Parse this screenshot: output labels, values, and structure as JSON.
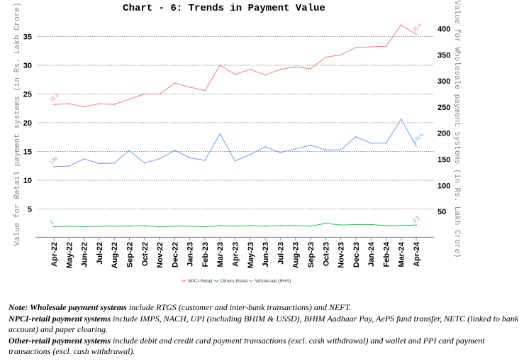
{
  "chart_data": {
    "type": "line",
    "title": "Chart - 6: Trends in Payment Value",
    "ylabel": "Value for Retail payment systems (in Rs. Lakh Crore)",
    "y2label": "Value for Wholesale payment systems (in Rs. Lakh Crore)",
    "xlabel": "",
    "categories": [
      "Apr-22",
      "May-22",
      "Jun-22",
      "Jul-22",
      "Aug-22",
      "Sep-22",
      "Oct-22",
      "Nov-22",
      "Dec-22",
      "Jan-23",
      "Feb-23",
      "Mar-23",
      "Apr-23",
      "May-23",
      "Jun-23",
      "Jul-23",
      "Aug-23",
      "Sep-23",
      "Oct-23",
      "Nov-23",
      "Dec-23",
      "Jan-24",
      "Feb-24",
      "Mar-24",
      "Apr-24"
    ],
    "ylim": [
      0,
      40
    ],
    "y2lim": [
      0,
      440
    ],
    "yticks": [
      5,
      10,
      15,
      20,
      25,
      30,
      35
    ],
    "y2ticks": [
      50,
      100,
      150,
      200,
      250,
      300,
      350,
      400
    ],
    "grid": true,
    "legend_position": "bottom",
    "series": [
      {
        "name": "NPCI-Retail",
        "axis": "left",
        "color": "#f4807b",
        "values": [
          23.2,
          23.3,
          22.8,
          23.3,
          23.2,
          24.1,
          25.0,
          25.0,
          26.9,
          26.2,
          25.6,
          30.0,
          28.4,
          29.3,
          28.3,
          29.3,
          29.7,
          29.4,
          31.4,
          31.8,
          33.1,
          33.2,
          33.3,
          37.0,
          35.4
        ],
        "labels": {
          "first": "23.2",
          "last": "35.4"
        }
      },
      {
        "name": "Others-Retail",
        "axis": "left",
        "color": "#2ec05a",
        "values": [
          1.9,
          2.0,
          1.9,
          2.0,
          2.0,
          2.0,
          2.1,
          1.9,
          2.0,
          2.0,
          1.9,
          2.1,
          2.0,
          2.1,
          2.0,
          2.1,
          2.1,
          2.0,
          2.5,
          2.2,
          2.3,
          2.3,
          2.1,
          2.1,
          2.2
        ],
        "labels": {
          "first": "2",
          "last": "2.2"
        }
      },
      {
        "name": "Wholesale (RHS)",
        "axis": "right",
        "color": "#6f9ef5",
        "values": [
          136,
          137,
          151,
          142,
          143,
          167,
          143,
          151,
          167,
          153,
          148,
          199,
          147,
          159,
          174,
          163,
          170,
          177,
          168,
          168,
          193,
          181,
          181,
          227,
          175.6
        ],
        "labels": {
          "first": "136",
          "last": "175.6"
        }
      }
    ]
  },
  "notes": {
    "line1_bold": "Note: Wholesale payment systems",
    "line1_rest": " include RTGS (customer and inter-bank transactions) and NEFT.",
    "line2_bold": "NPCI-retail payment systems",
    "line2_rest": " include IMPS, NACH, UPI (including BHIM & USSD), BHIM Aadhaar Pay, AePS fund transfer, NETC (linked to bank account) and paper clearing.",
    "line3_bold": "Other-retail payment systems",
    "line3_rest": " include debit and credit card payment transactions (excl. cash withdrawal) and wallet and PPI card payment transactions (excl. cash withdrawal)."
  }
}
